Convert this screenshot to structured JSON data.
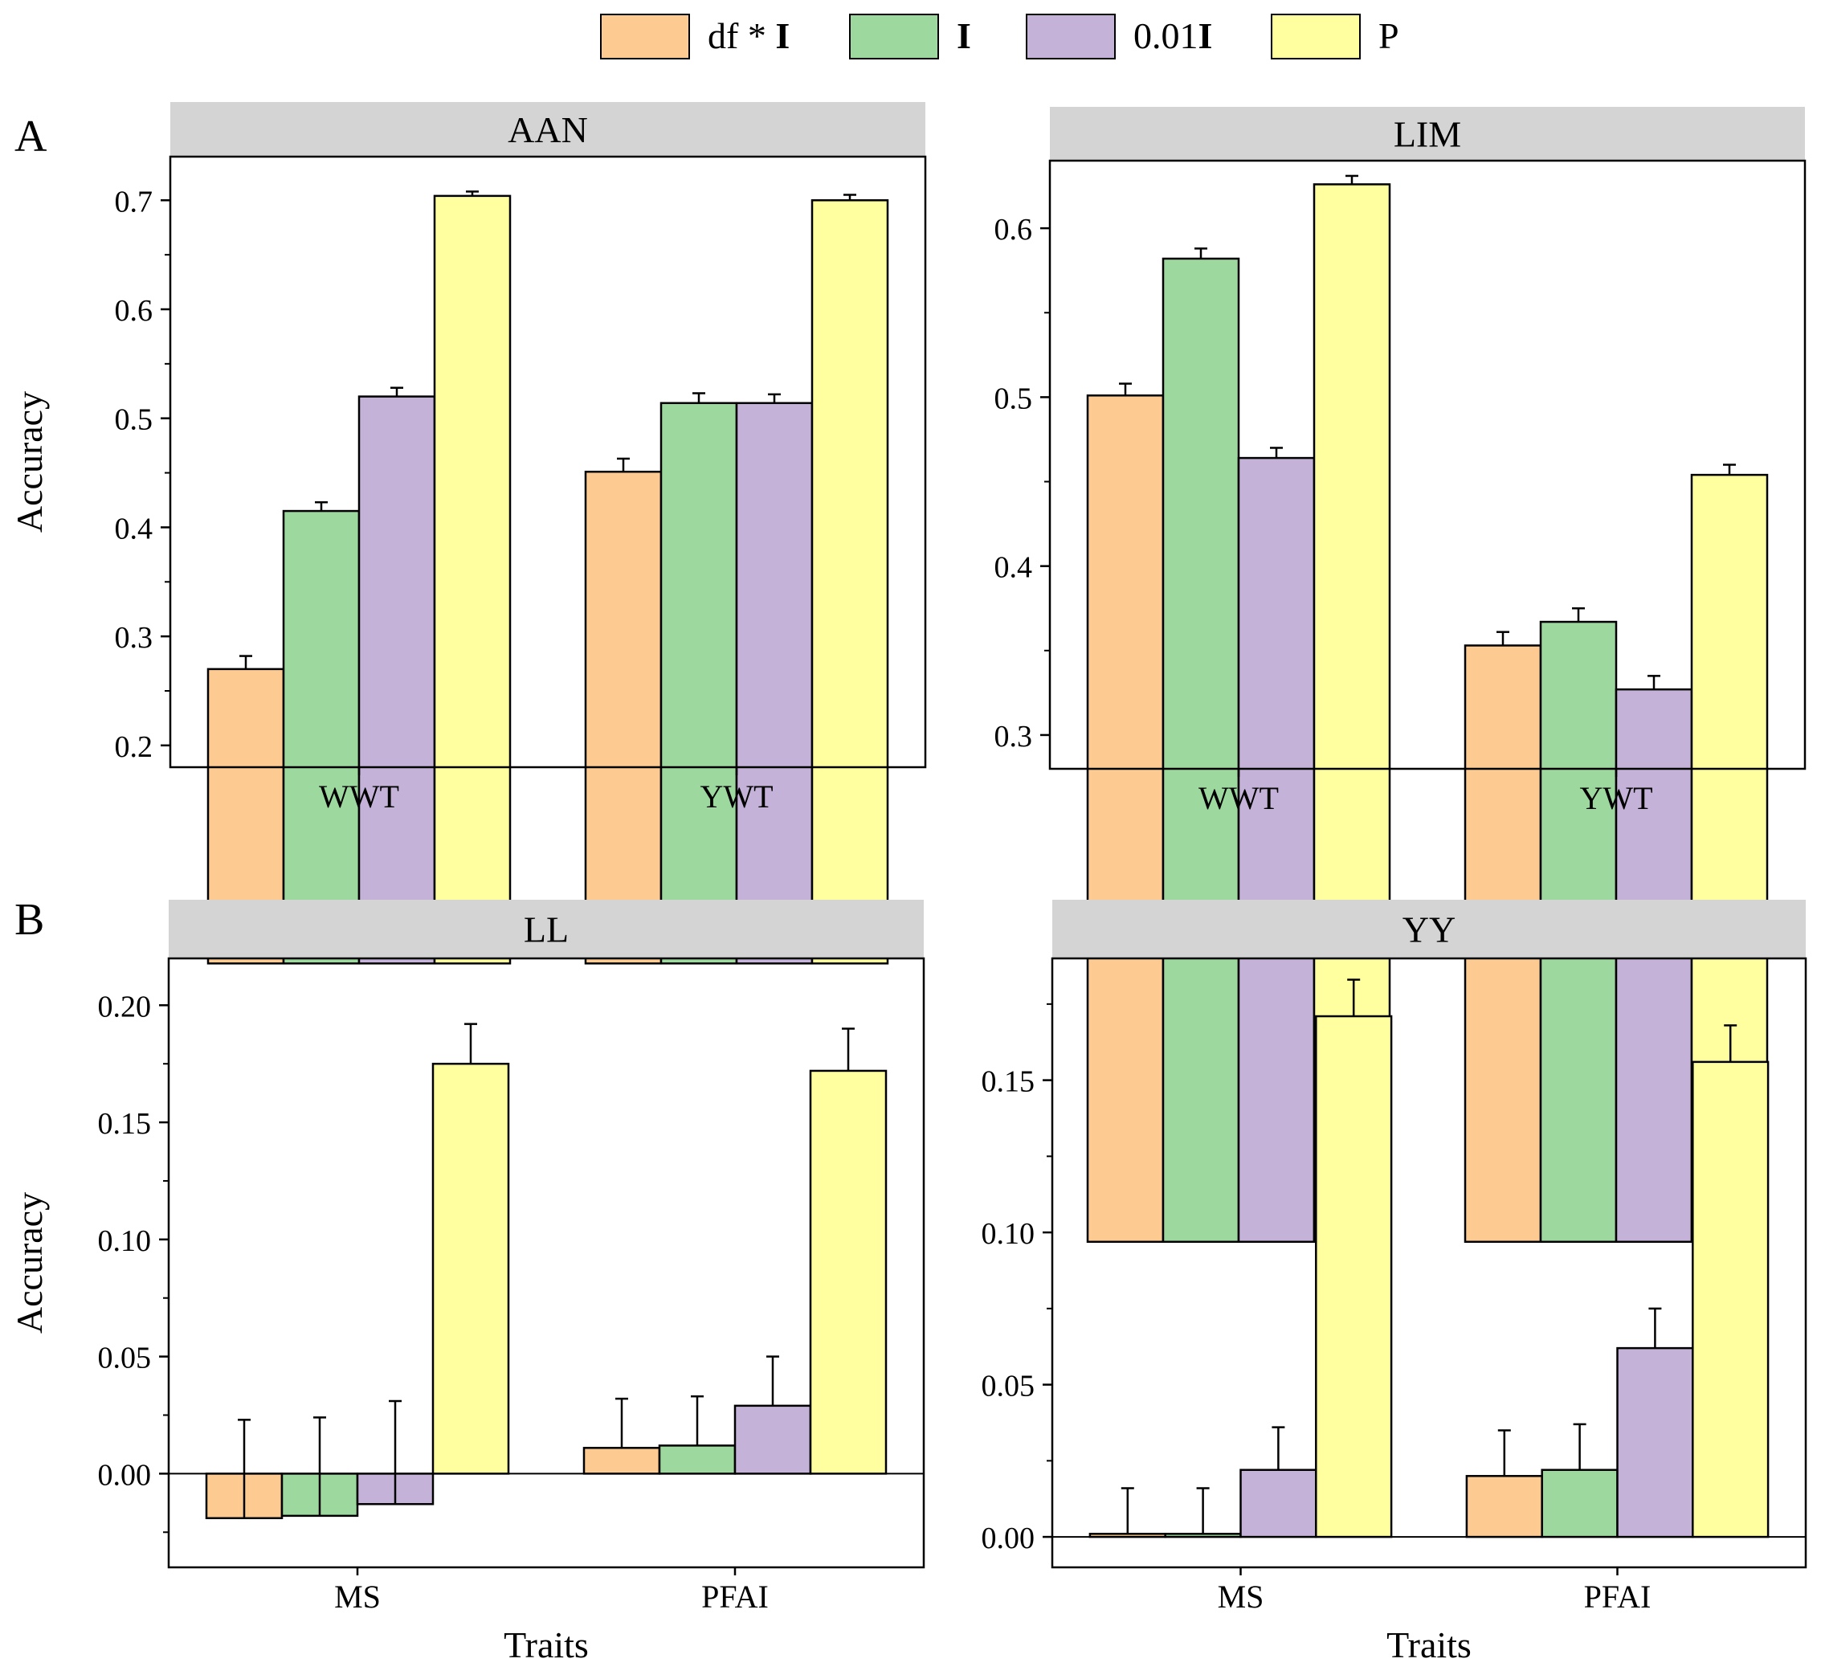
{
  "legend": {
    "items": [
      {
        "label_pre": "df * ",
        "label_bold": "I",
        "color": "#FDCB92"
      },
      {
        "label_pre": "",
        "label_bold": "I",
        "color": "#9DD89E"
      },
      {
        "label_pre": "0.01",
        "label_bold": "I",
        "color": "#C5B2D8"
      },
      {
        "label_pre": "P",
        "label_bold": "",
        "color": "#FFFF9F"
      }
    ],
    "placement": "top-center"
  },
  "row_labels": [
    "A",
    "B"
  ],
  "chart_data": [
    {
      "type": "bar",
      "title": "AAN",
      "row": "A",
      "categories": [
        "WWT",
        "YWT"
      ],
      "xlabel": "",
      "ylabel": "Accuracy",
      "ylim": [
        0.18,
        0.74
      ],
      "yticks": [
        0.2,
        0.3,
        0.4,
        0.5,
        0.6,
        0.7
      ],
      "ytick_labels": [
        "0.2",
        "0.3",
        "0.4",
        "0.5",
        "0.6",
        "0.7"
      ],
      "series": [
        {
          "values": [
            0.27,
            0.451
          ],
          "errors": [
            0.012,
            0.012
          ]
        },
        {
          "values": [
            0.415,
            0.514
          ],
          "errors": [
            0.008,
            0.009
          ]
        },
        {
          "values": [
            0.52,
            0.514
          ],
          "errors": [
            0.008,
            0.008
          ]
        },
        {
          "values": [
            0.704,
            0.7
          ],
          "errors": [
            0.004,
            0.005
          ]
        }
      ]
    },
    {
      "type": "bar",
      "title": "LIM",
      "row": "A",
      "categories": [
        "WWT",
        "YWT"
      ],
      "xlabel": "",
      "ylabel": "",
      "ylim": [
        0.28,
        0.64
      ],
      "yticks": [
        0.3,
        0.4,
        0.5,
        0.6
      ],
      "ytick_labels": [
        "0.3",
        "0.4",
        "0.5",
        "0.6"
      ],
      "series": [
        {
          "values": [
            0.501,
            0.353
          ],
          "errors": [
            0.007,
            0.008
          ]
        },
        {
          "values": [
            0.582,
            0.367
          ],
          "errors": [
            0.006,
            0.008
          ]
        },
        {
          "values": [
            0.464,
            0.327
          ],
          "errors": [
            0.006,
            0.008
          ]
        },
        {
          "values": [
            0.626,
            0.454
          ],
          "errors": [
            0.005,
            0.006
          ]
        }
      ]
    },
    {
      "type": "bar",
      "title": "LL",
      "row": "B",
      "categories": [
        "MS",
        "PFAI"
      ],
      "xlabel": "Traits",
      "ylabel": "Accuracy",
      "ylim": [
        -0.04,
        0.22
      ],
      "yticks": [
        0.0,
        0.05,
        0.1,
        0.15,
        0.2
      ],
      "ytick_labels": [
        "0.00",
        "0.05",
        "0.10",
        "0.15",
        "0.20"
      ],
      "series": [
        {
          "values": [
            -0.019,
            0.011
          ],
          "errors": [
            0.021,
            0.021
          ]
        },
        {
          "values": [
            -0.018,
            0.012
          ],
          "errors": [
            0.021,
            0.021
          ]
        },
        {
          "values": [
            -0.013,
            0.029
          ],
          "errors": [
            0.022,
            0.021
          ]
        },
        {
          "values": [
            0.175,
            0.172
          ],
          "errors": [
            0.017,
            0.018
          ]
        }
      ]
    },
    {
      "type": "bar",
      "title": "YY",
      "row": "B",
      "categories": [
        "MS",
        "PFAI"
      ],
      "xlabel": "Traits",
      "ylabel": "",
      "ylim": [
        -0.01,
        0.19
      ],
      "yticks": [
        0.0,
        0.05,
        0.1,
        0.15
      ],
      "ytick_labels": [
        "0.00",
        "0.05",
        "0.10",
        "0.15"
      ],
      "series": [
        {
          "values": [
            0.001,
            0.02
          ],
          "errors": [
            0.015,
            0.015
          ]
        },
        {
          "values": [
            0.001,
            0.022
          ],
          "errors": [
            0.015,
            0.015
          ]
        },
        {
          "values": [
            0.022,
            0.062
          ],
          "errors": [
            0.014,
            0.013
          ]
        },
        {
          "values": [
            0.171,
            0.156
          ],
          "errors": [
            0.012,
            0.012
          ]
        }
      ]
    }
  ]
}
